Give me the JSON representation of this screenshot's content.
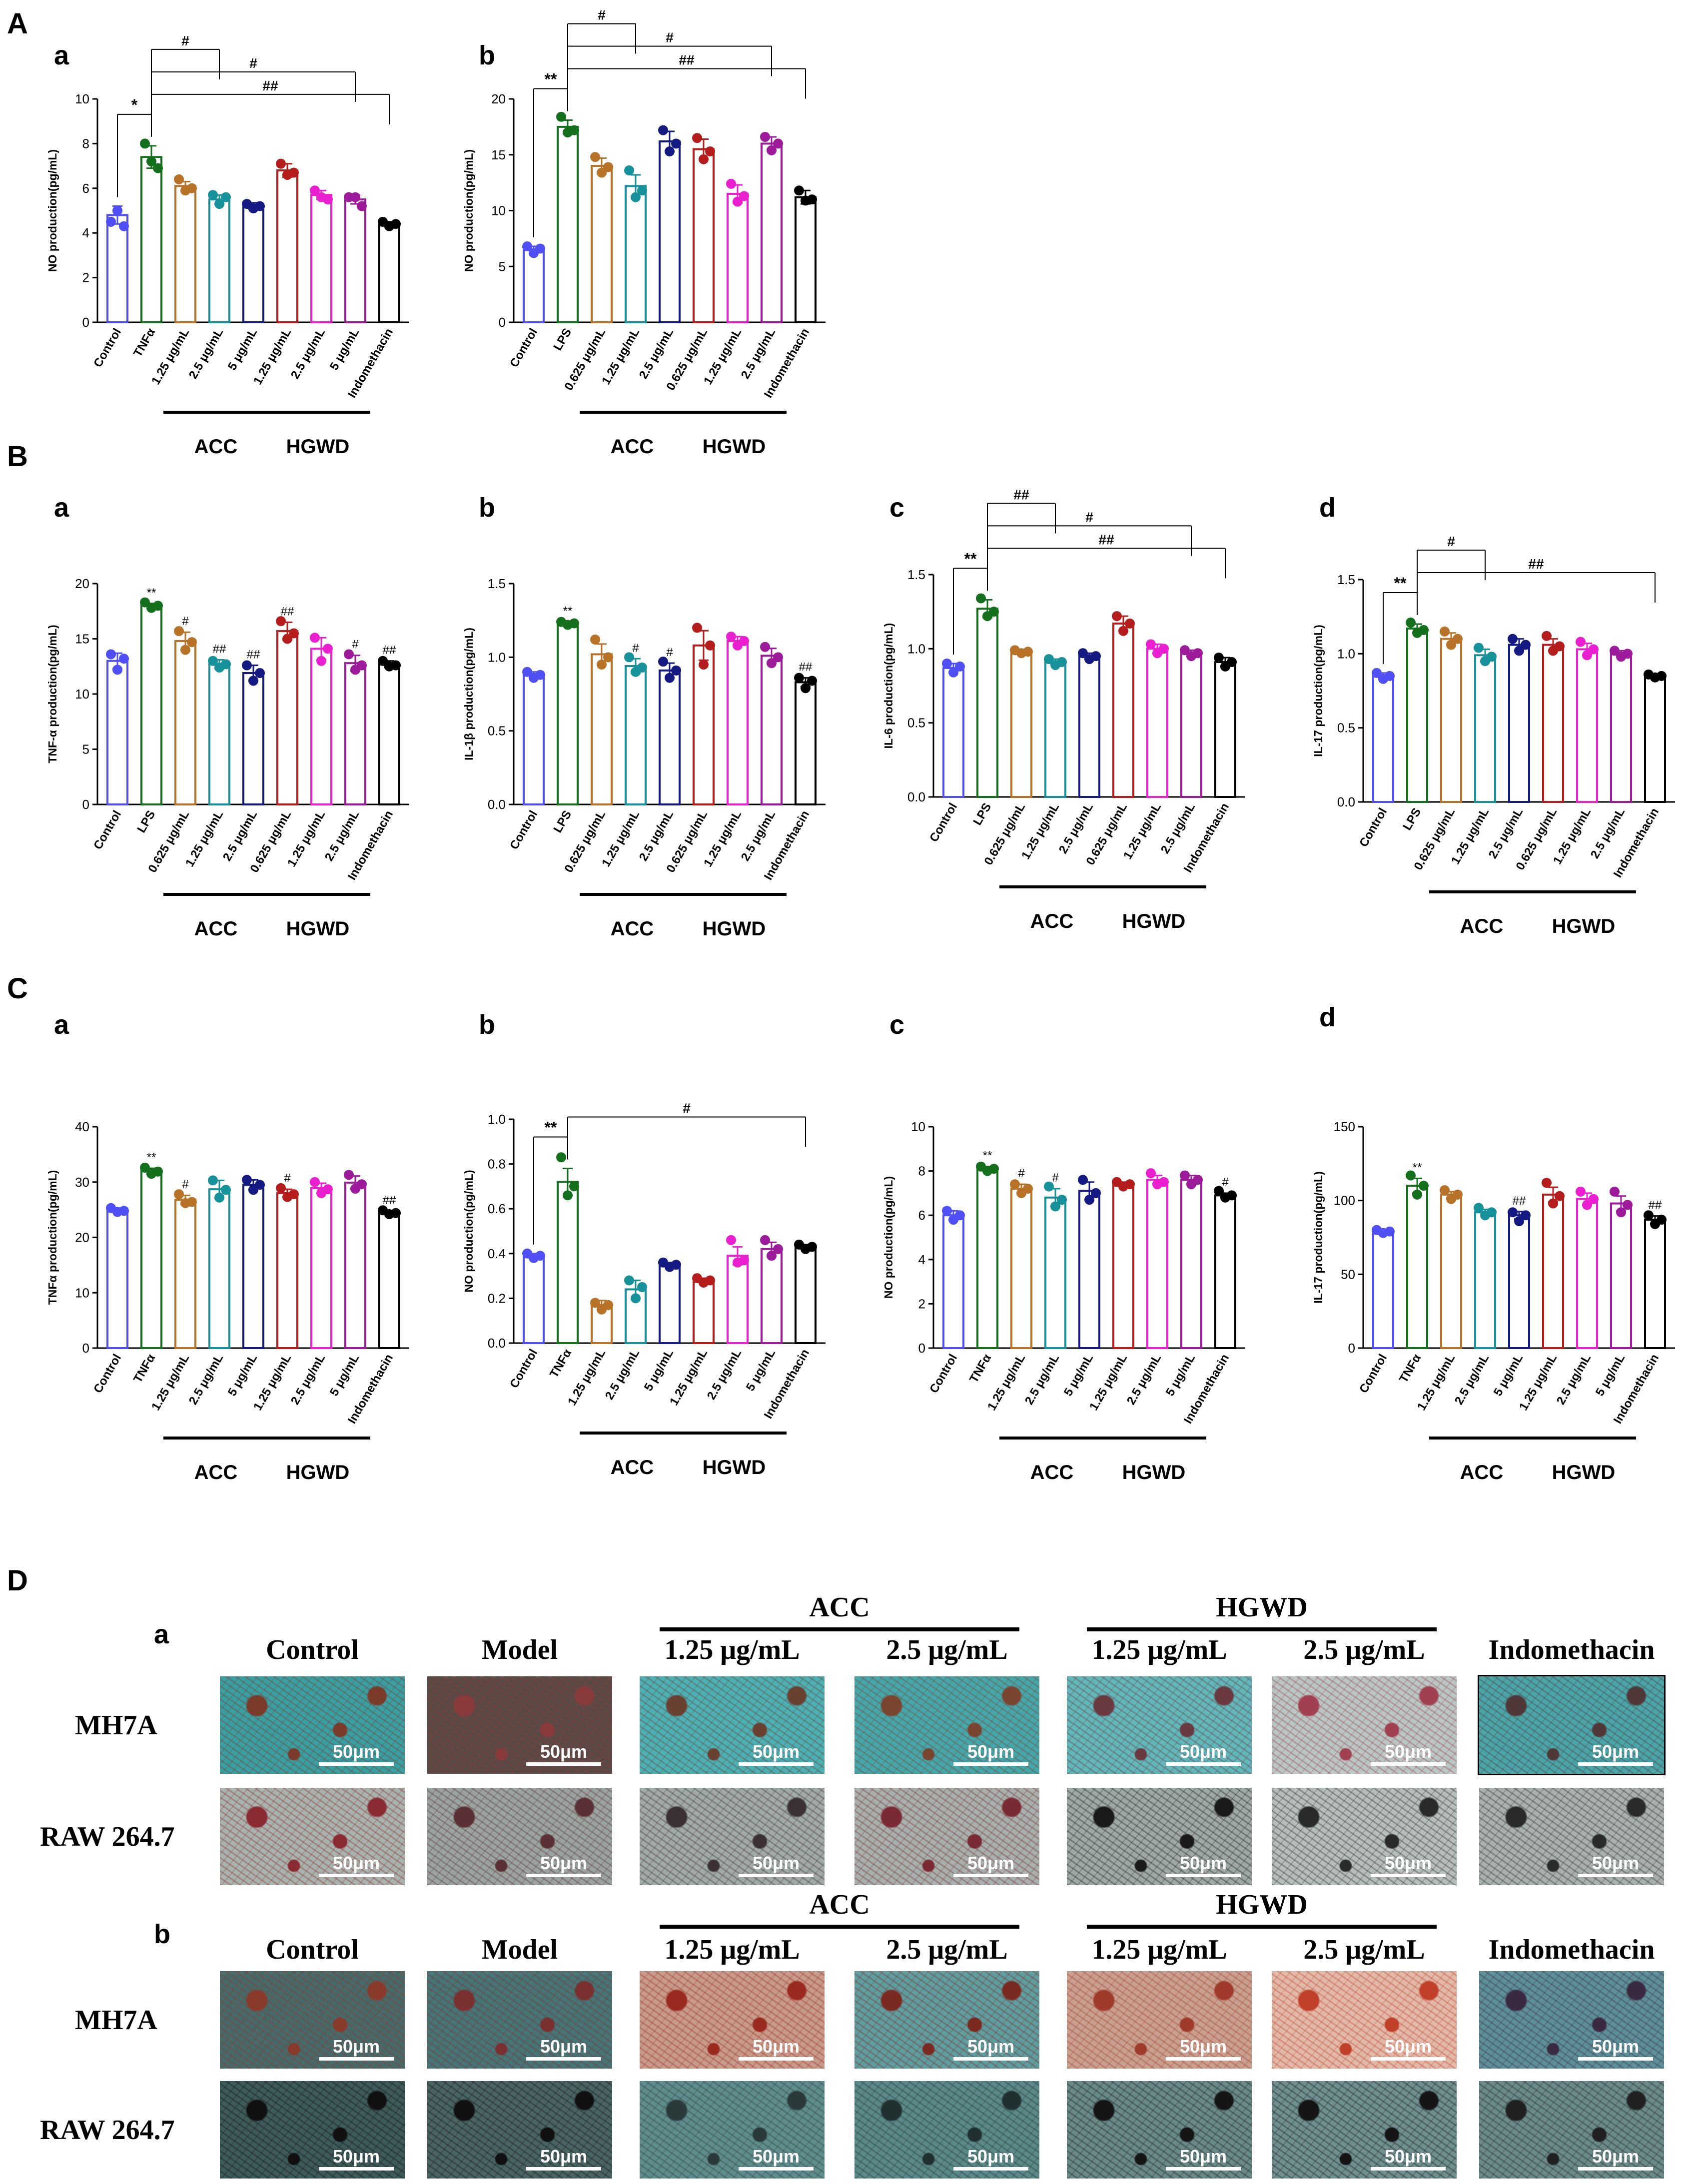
{
  "panel_labels": {
    "A": "A",
    "B": "B",
    "C": "C",
    "D": "D",
    "sub_a": "a",
    "sub_b": "b",
    "sub_c": "c",
    "sub_d": "d"
  },
  "chart_data": [
    {
      "id": "A-a",
      "type": "bar",
      "ylabel": "NO production(pg/mL)",
      "ylim": [
        0,
        10
      ],
      "yticks": [
        "0",
        "2",
        "4",
        "6",
        "8",
        "10"
      ],
      "categories": [
        "Control",
        "TNFα",
        "1.25 μg/mL",
        "2.5 μg/mL",
        "5 μg/mL",
        "1.25 μg/mL",
        "2.5 μg/mL",
        "5 μg/mL",
        "Indomethacin"
      ],
      "values": [
        4.8,
        7.4,
        6.1,
        5.5,
        5.2,
        6.8,
        5.7,
        5.5,
        4.4
      ],
      "errors": [
        0.4,
        0.5,
        0.2,
        0.2,
        0.15,
        0.3,
        0.2,
        0.2,
        0.1
      ],
      "dots": [
        [
          4.5,
          5.0,
          4.3
        ],
        [
          8.0,
          7.2,
          6.9
        ],
        [
          6.4,
          5.9,
          6.0
        ],
        [
          5.7,
          5.3,
          5.6
        ],
        [
          5.3,
          5.1,
          5.2
        ],
        [
          7.1,
          6.6,
          6.7
        ],
        [
          5.9,
          5.6,
          5.5
        ],
        [
          5.6,
          5.6,
          5.2
        ],
        [
          4.5,
          4.3,
          4.4
        ]
      ],
      "groups": [
        {
          "label": "ACC",
          "from": 2,
          "to": 4
        },
        {
          "label": "HGWD",
          "from": 5,
          "to": 7
        }
      ]
    },
    {
      "id": "A-b",
      "type": "bar",
      "ylabel": "NO production(pg/mL)",
      "ylim": [
        0,
        20
      ],
      "yticks": [
        "0",
        "5",
        "10",
        "15",
        "20"
      ],
      "categories": [
        "Control",
        "LPS",
        "0.625 μg/mL",
        "1.25 μg/mL",
        "2.5 μg/mL",
        "0.625 μg/mL",
        "1.25 μg/mL",
        "2.5 μg/mL",
        "Indomethacin"
      ],
      "values": [
        6.5,
        17.5,
        14.0,
        12.2,
        16.2,
        15.5,
        11.5,
        16.0,
        11.2
      ],
      "errors": [
        0.3,
        0.6,
        0.7,
        1.0,
        0.9,
        0.9,
        0.8,
        0.6,
        0.6
      ],
      "dots": [
        [
          6.8,
          6.2,
          6.6
        ],
        [
          18.4,
          17.0,
          17.2
        ],
        [
          14.8,
          13.4,
          13.9
        ],
        [
          13.6,
          11.2,
          11.8
        ],
        [
          17.2,
          15.3,
          16.0
        ],
        [
          16.5,
          14.6,
          15.3
        ],
        [
          12.4,
          10.8,
          11.3
        ],
        [
          16.6,
          15.4,
          16.0
        ],
        [
          11.8,
          10.9,
          11.0
        ]
      ],
      "groups": [
        {
          "label": "ACC",
          "from": 2,
          "to": 4
        },
        {
          "label": "HGWD",
          "from": 5,
          "to": 7
        }
      ]
    },
    {
      "id": "B-a",
      "type": "bar",
      "ylabel": "TNF-α  production(pg/mL)",
      "ylim": [
        0,
        20
      ],
      "yticks": [
        "0",
        "5",
        "10",
        "15",
        "20"
      ],
      "categories": [
        "Control",
        "LPS",
        "0.625 μg/mL",
        "1.25 μg/mL",
        "2.5 μg/mL",
        "0.625 μg/mL",
        "1.25 μg/mL",
        "2.5 μg/mL",
        "Indomethacin"
      ],
      "values": [
        13.0,
        18.0,
        14.8,
        12.7,
        11.9,
        15.7,
        14.1,
        12.8,
        12.7
      ],
      "errors": [
        0.7,
        0.2,
        0.8,
        0.4,
        0.7,
        0.8,
        1.0,
        0.7,
        0.3
      ],
      "dots": [
        [
          13.6,
          12.2,
          13.2
        ],
        [
          18.3,
          17.8,
          18.0
        ],
        [
          15.7,
          14.0,
          14.7
        ],
        [
          13.0,
          12.4,
          12.7
        ],
        [
          12.6,
          11.2,
          11.9
        ],
        [
          16.6,
          15.0,
          15.5
        ],
        [
          15.1,
          13.0,
          14.1
        ],
        [
          13.6,
          12.2,
          12.6
        ],
        [
          13.0,
          12.5,
          12.6
        ]
      ],
      "groups": [
        {
          "label": "ACC",
          "from": 2,
          "to": 4
        },
        {
          "label": "HGWD",
          "from": 5,
          "to": 7
        }
      ]
    },
    {
      "id": "B-b",
      "type": "bar",
      "ylabel": "IL-1β production(pg/mL)",
      "ylim": [
        0,
        1.5
      ],
      "yticks": [
        "0.0",
        "0.5",
        "1.0",
        "1.5"
      ],
      "categories": [
        "Control",
        "LPS",
        "0.625 μg/mL",
        "1.25 μg/mL",
        "2.5 μg/mL",
        "0.625 μg/mL",
        "1.25 μg/mL",
        "2.5 μg/mL",
        "Indomethacin"
      ],
      "values": [
        0.88,
        1.23,
        1.02,
        0.94,
        0.91,
        1.08,
        1.11,
        1.01,
        0.83
      ],
      "errors": [
        0.02,
        0.01,
        0.07,
        0.05,
        0.05,
        0.1,
        0.03,
        0.05,
        0.03
      ],
      "dots": [
        [
          0.9,
          0.86,
          0.88
        ],
        [
          1.24,
          1.22,
          1.23
        ],
        [
          1.12,
          0.95,
          1.0
        ],
        [
          1.0,
          0.9,
          0.93
        ],
        [
          0.97,
          0.86,
          0.91
        ],
        [
          1.2,
          0.95,
          1.08
        ],
        [
          1.14,
          1.08,
          1.11
        ],
        [
          1.07,
          0.96,
          1.0
        ],
        [
          0.86,
          0.79,
          0.84
        ]
      ],
      "groups": [
        {
          "label": "ACC",
          "from": 2,
          "to": 4
        },
        {
          "label": "HGWD",
          "from": 5,
          "to": 7
        }
      ]
    },
    {
      "id": "B-c",
      "type": "bar",
      "ylabel": "IL-6 production(pg/mL)",
      "ylim": [
        0,
        1.5
      ],
      "yticks": [
        "0.0",
        "0.5",
        "1.0",
        "1.5"
      ],
      "categories": [
        "Control",
        "LPS",
        "0.625 μg/mL",
        "1.25 μg/mL",
        "2.5 μg/mL",
        "0.625 μg/mL",
        "1.25 μg/mL",
        "2.5 μg/mL",
        "Indomethacin"
      ],
      "values": [
        0.87,
        1.27,
        0.98,
        0.91,
        0.95,
        1.17,
        1.0,
        0.97,
        0.91
      ],
      "errors": [
        0.03,
        0.06,
        0.01,
        0.02,
        0.02,
        0.05,
        0.03,
        0.02,
        0.03
      ],
      "dots": [
        [
          0.9,
          0.84,
          0.88
        ],
        [
          1.34,
          1.22,
          1.25
        ],
        [
          0.99,
          0.97,
          0.98
        ],
        [
          0.93,
          0.89,
          0.91
        ],
        [
          0.97,
          0.93,
          0.95
        ],
        [
          1.22,
          1.12,
          1.17
        ],
        [
          1.03,
          0.97,
          1.0
        ],
        [
          0.99,
          0.95,
          0.97
        ],
        [
          0.94,
          0.88,
          0.91
        ]
      ],
      "groups": [
        {
          "label": "ACC",
          "from": 2,
          "to": 4
        },
        {
          "label": "HGWD",
          "from": 5,
          "to": 7
        }
      ]
    },
    {
      "id": "B-d",
      "type": "bar",
      "ylabel": "IL-17 production(pg/mL)",
      "ylim": [
        0,
        1.5
      ],
      "yticks": [
        "0.0",
        "0.5",
        "1.0",
        "1.5"
      ],
      "categories": [
        "Control",
        "LPS",
        "0.625 μg/mL",
        "1.25 μg/mL",
        "2.5 μg/mL",
        "0.625 μg/mL",
        "1.25 μg/mL",
        "2.5 μg/mL",
        "Indomethacin"
      ],
      "values": [
        0.85,
        1.17,
        1.1,
        0.99,
        1.06,
        1.06,
        1.03,
        1.0,
        0.85
      ],
      "errors": [
        0.02,
        0.03,
        0.04,
        0.04,
        0.04,
        0.04,
        0.04,
        0.02,
        0.01
      ],
      "dots": [
        [
          0.87,
          0.83,
          0.85
        ],
        [
          1.21,
          1.14,
          1.16
        ],
        [
          1.15,
          1.06,
          1.1
        ],
        [
          1.04,
          0.95,
          0.98
        ],
        [
          1.1,
          1.02,
          1.06
        ],
        [
          1.12,
          1.02,
          1.05
        ],
        [
          1.08,
          0.99,
          1.03
        ],
        [
          1.02,
          0.98,
          1.0
        ],
        [
          0.86,
          0.84,
          0.85
        ]
      ],
      "groups": [
        {
          "label": "ACC",
          "from": 2,
          "to": 4
        },
        {
          "label": "HGWD",
          "from": 5,
          "to": 7
        }
      ]
    },
    {
      "id": "C-a",
      "type": "bar",
      "ylabel": "TNFα production(pg/mL)",
      "ylim": [
        0,
        40
      ],
      "yticks": [
        "0",
        "10",
        "20",
        "30",
        "40"
      ],
      "categories": [
        "Control",
        "TNFα",
        "1.25 μg/mL",
        "2.5 μg/mL",
        "5 μg/mL",
        "1.25 μg/mL",
        "2.5 μg/mL",
        "5 μg/mL",
        "Indomethacin"
      ],
      "values": [
        24.9,
        32.0,
        26.8,
        28.7,
        29.5,
        28.0,
        28.9,
        29.9,
        24.5
      ],
      "errors": [
        0.4,
        0.5,
        0.8,
        1.6,
        0.9,
        0.7,
        0.9,
        1.2,
        0.3
      ],
      "dots": [
        [
          25.3,
          24.6,
          24.8
        ],
        [
          32.6,
          31.5,
          31.9
        ],
        [
          27.8,
          26.2,
          26.4
        ],
        [
          30.3,
          27.2,
          28.6
        ],
        [
          30.4,
          28.6,
          29.5
        ],
        [
          28.9,
          27.3,
          27.8
        ],
        [
          30.0,
          28.0,
          28.7
        ],
        [
          31.3,
          28.8,
          29.6
        ],
        [
          24.9,
          24.2,
          24.4
        ]
      ],
      "groups": [
        {
          "label": "ACC",
          "from": 2,
          "to": 4
        },
        {
          "label": "HGWD",
          "from": 5,
          "to": 7
        }
      ]
    },
    {
      "id": "C-b",
      "type": "bar",
      "ylabel": "NO production(pg/mL)",
      "ylim": [
        0,
        1.0
      ],
      "yticks": [
        "0.0",
        "0.2",
        "0.4",
        "0.6",
        "0.8",
        "1.0"
      ],
      "categories": [
        "Control",
        "TNFα",
        "1.25 μg/mL",
        "2.5 μg/mL",
        "5 μg/mL",
        "1.25 μg/mL",
        "2.5 μg/mL",
        "5 μg/mL",
        "Indomethacin"
      ],
      "values": [
        0.39,
        0.72,
        0.17,
        0.24,
        0.35,
        0.28,
        0.39,
        0.42,
        0.43
      ],
      "errors": [
        0.01,
        0.06,
        0.02,
        0.04,
        0.01,
        0.01,
        0.04,
        0.03,
        0.01
      ],
      "dots": [
        [
          0.4,
          0.38,
          0.39
        ],
        [
          0.83,
          0.66,
          0.7
        ],
        [
          0.18,
          0.15,
          0.17
        ],
        [
          0.28,
          0.2,
          0.25
        ],
        [
          0.36,
          0.34,
          0.35
        ],
        [
          0.29,
          0.27,
          0.28
        ],
        [
          0.46,
          0.36,
          0.37
        ],
        [
          0.46,
          0.39,
          0.42
        ],
        [
          0.44,
          0.42,
          0.43
        ]
      ],
      "groups": [
        {
          "label": "ACC",
          "from": 2,
          "to": 4
        },
        {
          "label": "HGWD",
          "from": 5,
          "to": 7
        }
      ]
    },
    {
      "id": "C-c",
      "type": "bar",
      "ylabel": "NO production(pg/mL)",
      "ylim": [
        0,
        10
      ],
      "yticks": [
        "0",
        "2",
        "4",
        "6",
        "8",
        "10"
      ],
      "categories": [
        "Control",
        "TNFα",
        "1.25 μg/mL",
        "2.5 μg/mL",
        "5 μg/mL",
        "1.25 μg/mL",
        "2.5 μg/mL",
        "5 μg/mL",
        "Indomethacin"
      ],
      "values": [
        6.0,
        8.1,
        7.2,
        6.8,
        7.1,
        7.4,
        7.6,
        7.6,
        6.9
      ],
      "errors": [
        0.2,
        0.1,
        0.2,
        0.4,
        0.4,
        0.1,
        0.2,
        0.2,
        0.1
      ],
      "dots": [
        [
          6.2,
          5.8,
          6.0
        ],
        [
          8.2,
          8.0,
          8.1
        ],
        [
          7.4,
          7.0,
          7.2
        ],
        [
          7.3,
          6.4,
          6.7
        ],
        [
          7.6,
          6.7,
          7.0
        ],
        [
          7.5,
          7.3,
          7.4
        ],
        [
          7.9,
          7.4,
          7.5
        ],
        [
          7.8,
          7.4,
          7.6
        ],
        [
          7.1,
          6.8,
          6.9
        ]
      ],
      "groups": [
        {
          "label": "ACC",
          "from": 2,
          "to": 4
        },
        {
          "label": "HGWD",
          "from": 5,
          "to": 7
        }
      ]
    },
    {
      "id": "C-d",
      "type": "bar",
      "ylabel": "IL-17 production(pg/mL)",
      "ylim": [
        0,
        150
      ],
      "yticks": [
        "0",
        "50",
        "100",
        "150"
      ],
      "categories": [
        "Control",
        "TNFα",
        "1.25 μg/mL",
        "2.5 μg/mL",
        "5 μg/mL",
        "1.25 μg/mL",
        "2.5 μg/mL",
        "5 μg/mL",
        "Indomethacin"
      ],
      "values": [
        79,
        110,
        104,
        92,
        90,
        104,
        101,
        98,
        87
      ],
      "errors": [
        1.5,
        5,
        2,
        2,
        2.5,
        5,
        4,
        5,
        2.5
      ],
      "dots": [
        [
          80,
          78,
          79
        ],
        [
          117,
          104,
          110
        ],
        [
          107,
          101,
          104
        ],
        [
          95,
          90,
          92
        ],
        [
          92,
          86,
          90
        ],
        [
          112,
          98,
          103
        ],
        [
          106,
          97,
          101
        ],
        [
          106,
          92,
          97
        ],
        [
          90,
          84,
          87
        ]
      ],
      "groups": [
        {
          "label": "ACC",
          "from": 2,
          "to": 4
        },
        {
          "label": "HGWD",
          "from": 5,
          "to": 7
        }
      ]
    }
  ],
  "colors": {
    "bars": [
      "#4f4ff5",
      "#15701e",
      "#b87328",
      "#17919a",
      "#141a82",
      "#b51d1d",
      "#ea1fd0",
      "#9d1a9a",
      "#000000"
    ]
  },
  "annotations": {
    "A-a": {
      "above": [
        "",
        "",
        "",
        "",
        "",
        "",
        "",
        "",
        ""
      ],
      "brackets": [
        "*",
        "#",
        "#",
        "##"
      ]
    },
    "A-b": {
      "above": [
        "",
        "",
        "",
        "",
        "",
        "",
        "",
        "",
        ""
      ],
      "brackets": [
        "**",
        "#",
        "#",
        "##"
      ]
    },
    "B-a": {
      "above": [
        "",
        "**",
        "#",
        "##",
        "##",
        "##",
        "",
        "#",
        "##"
      ],
      "brackets": []
    },
    "B-b": {
      "above": [
        "",
        "**",
        "",
        "#",
        "#",
        "",
        "",
        "",
        "##"
      ],
      "brackets": []
    },
    "B-c": {
      "above": [
        "",
        "",
        "",
        "",
        "",
        "",
        "",
        "",
        ""
      ],
      "brackets": [
        "**",
        "##",
        "#",
        "##"
      ]
    },
    "B-d": {
      "above": [
        "",
        "",
        "",
        "",
        "",
        "",
        "",
        "",
        ""
      ],
      "brackets": [
        "**",
        "#",
        "##"
      ]
    },
    "C-a": {
      "above": [
        "",
        "**",
        "#",
        "",
        "",
        "#",
        "",
        "",
        "##"
      ],
      "brackets": []
    },
    "C-b": {
      "above": [
        "",
        "",
        "",
        "",
        "",
        "",
        "",
        "",
        ""
      ],
      "brackets": [
        "**",
        "#"
      ]
    },
    "C-c": {
      "above": [
        "",
        "**",
        "#",
        "#",
        "",
        "",
        "",
        "",
        "#"
      ],
      "brackets": []
    },
    "C-d": {
      "above": [
        "",
        "**",
        "",
        "",
        "##",
        "",
        "",
        "",
        "##"
      ],
      "brackets": []
    }
  },
  "micrographs": {
    "a": {
      "cols": [
        "Control",
        "Model",
        "1.25 μg/mL",
        "2.5 μg/mL",
        "1.25 μg/mL",
        "2.5 μg/mL",
        "Indomethacin"
      ],
      "groups": [
        "ACC",
        "HGWD"
      ],
      "rows": [
        "MH7A",
        "RAW 264.7"
      ],
      "scale_bar": "50μm"
    },
    "b": {
      "cols": [
        "Control",
        "Model",
        "1.25 μg/mL",
        "2.5 μg/mL",
        "1.25 μg/mL",
        "2.5 μg/mL",
        "Indomethacin"
      ],
      "groups": [
        "ACC",
        "HGWD"
      ],
      "rows": [
        "MH7A",
        "RAW 264.7"
      ],
      "scale_bar": "50μm"
    }
  }
}
